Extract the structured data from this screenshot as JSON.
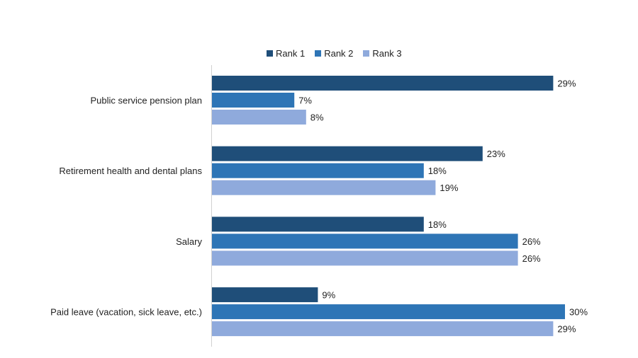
{
  "chart_data": {
    "type": "bar",
    "orientation": "horizontal",
    "title": "",
    "xlabel": "",
    "ylabel": "",
    "xlim": [
      0,
      30
    ],
    "grid": false,
    "legend_position": "top",
    "value_format": "percent",
    "categories": [
      "Public service pension plan",
      "Retirement health and dental plans",
      "Salary",
      "Paid leave (vacation, sick leave, etc.)"
    ],
    "series": [
      {
        "name": "Rank 1",
        "color": "#1F4E79",
        "values": [
          29,
          23,
          18,
          9
        ]
      },
      {
        "name": "Rank 2",
        "color": "#2E75B6",
        "values": [
          7,
          18,
          26,
          30
        ]
      },
      {
        "name": "Rank 3",
        "color": "#8FAADC",
        "values": [
          8,
          19,
          26,
          29
        ]
      }
    ]
  }
}
